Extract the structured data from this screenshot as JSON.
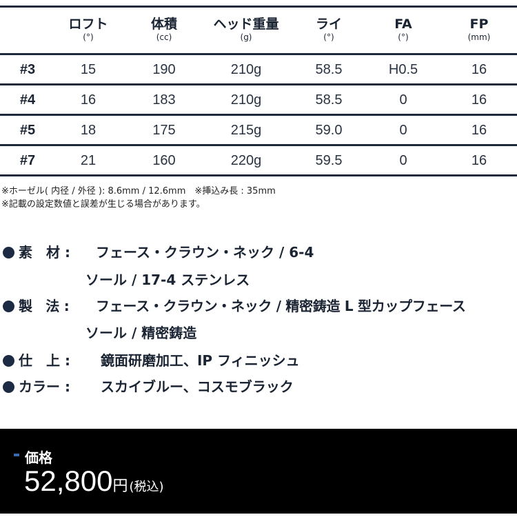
{
  "table": {
    "headers": [
      {
        "main": "ロフト",
        "unit": "(°)"
      },
      {
        "main": "体積",
        "unit": "(cc)"
      },
      {
        "main": "ヘッド重量",
        "unit": "(g)"
      },
      {
        "main": "ライ",
        "unit": "(°)"
      },
      {
        "main": "FA",
        "unit": "(°)"
      },
      {
        "main": "FP",
        "unit": "(mm)"
      }
    ],
    "rows": [
      {
        "label": "#3",
        "cells": [
          "15",
          "190",
          "210g",
          "58.5",
          "H0.5",
          "16"
        ]
      },
      {
        "label": "#4",
        "cells": [
          "16",
          "183",
          "210g",
          "58.5",
          "0",
          "16"
        ]
      },
      {
        "label": "#5",
        "cells": [
          "18",
          "175",
          "215g",
          "59.0",
          "0",
          "16"
        ]
      },
      {
        "label": "#7",
        "cells": [
          "21",
          "160",
          "220g",
          "59.5",
          "0",
          "16"
        ]
      }
    ]
  },
  "notes": [
    "※ホーゼル( 内径 / 外径 ): 8.6mm / 12.6mm　※挿込み長 : 35mm",
    "※記載の設定数値と誤差が生じる場合があります。"
  ],
  "specs": [
    {
      "key": "素　材 :",
      "value": "フェース・クラウン・ネック / 6-4",
      "value2": "ソール / 17-4 ステンレス"
    },
    {
      "key": "製　法 :",
      "value": "フェース・クラウン・ネック / 精密鋳造 L 型カップフェース",
      "value2": "ソール / 精密鋳造"
    },
    {
      "key": "仕　上 :",
      "value": " 鏡面研磨加工、IP フィニッシュ"
    },
    {
      "key": "カラー :",
      "value": " スカイブルー、コスモブラック"
    }
  ],
  "price": {
    "label": "価格",
    "amount": "52,800",
    "currency": "円",
    "tax": "(税込)",
    "accent": "#3a6aa8"
  }
}
